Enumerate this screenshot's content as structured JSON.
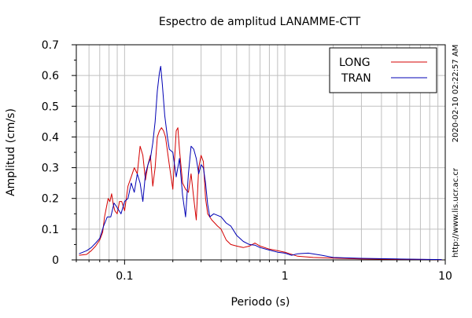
{
  "chart_data": {
    "type": "line",
    "title": "Espectro de amplitud LANAMME-CTT",
    "xlabel": "Periodo (s)",
    "ylabel": "Amplitud (cm/s)",
    "x_scale": "log",
    "xlim": [
      0.05,
      10
    ],
    "ylim": [
      0,
      0.7
    ],
    "grid": true,
    "legend_position": "top-right",
    "x_major_ticks": [
      {
        "value": 0.1,
        "label": "0.1"
      },
      {
        "value": 1,
        "label": "1"
      },
      {
        "value": 10,
        "label": "10"
      }
    ],
    "y_ticks": [
      {
        "value": 0,
        "label": "0"
      },
      {
        "value": 0.1,
        "label": "0.1"
      },
      {
        "value": 0.2,
        "label": "0.2"
      },
      {
        "value": 0.3,
        "label": "0.3"
      },
      {
        "value": 0.4,
        "label": "0.4"
      },
      {
        "value": 0.5,
        "label": "0.5"
      },
      {
        "value": 0.6,
        "label": "0.6"
      },
      {
        "value": 0.7,
        "label": "0.7"
      }
    ],
    "series": [
      {
        "name": "LONG",
        "color": "#d40000",
        "points": [
          [
            0.052,
            0.015
          ],
          [
            0.058,
            0.018
          ],
          [
            0.062,
            0.03
          ],
          [
            0.066,
            0.045
          ],
          [
            0.07,
            0.065
          ],
          [
            0.073,
            0.09
          ],
          [
            0.075,
            0.14
          ],
          [
            0.077,
            0.17
          ],
          [
            0.079,
            0.2
          ],
          [
            0.081,
            0.19
          ],
          [
            0.083,
            0.215
          ],
          [
            0.085,
            0.18
          ],
          [
            0.087,
            0.16
          ],
          [
            0.09,
            0.15
          ],
          [
            0.093,
            0.19
          ],
          [
            0.096,
            0.19
          ],
          [
            0.1,
            0.16
          ],
          [
            0.105,
            0.24
          ],
          [
            0.11,
            0.27
          ],
          [
            0.115,
            0.3
          ],
          [
            0.12,
            0.28
          ],
          [
            0.125,
            0.37
          ],
          [
            0.13,
            0.34
          ],
          [
            0.135,
            0.26
          ],
          [
            0.14,
            0.31
          ],
          [
            0.145,
            0.34
          ],
          [
            0.15,
            0.24
          ],
          [
            0.155,
            0.3
          ],
          [
            0.16,
            0.4
          ],
          [
            0.165,
            0.42
          ],
          [
            0.17,
            0.43
          ],
          [
            0.175,
            0.42
          ],
          [
            0.18,
            0.4
          ],
          [
            0.19,
            0.31
          ],
          [
            0.2,
            0.23
          ],
          [
            0.21,
            0.42
          ],
          [
            0.215,
            0.43
          ],
          [
            0.22,
            0.36
          ],
          [
            0.23,
            0.25
          ],
          [
            0.24,
            0.23
          ],
          [
            0.25,
            0.22
          ],
          [
            0.26,
            0.28
          ],
          [
            0.27,
            0.2
          ],
          [
            0.28,
            0.13
          ],
          [
            0.29,
            0.3
          ],
          [
            0.3,
            0.34
          ],
          [
            0.31,
            0.32
          ],
          [
            0.32,
            0.2
          ],
          [
            0.33,
            0.15
          ],
          [
            0.35,
            0.13
          ],
          [
            0.38,
            0.11
          ],
          [
            0.4,
            0.1
          ],
          [
            0.43,
            0.065
          ],
          [
            0.46,
            0.05
          ],
          [
            0.5,
            0.045
          ],
          [
            0.55,
            0.04
          ],
          [
            0.6,
            0.045
          ],
          [
            0.65,
            0.055
          ],
          [
            0.7,
            0.045
          ],
          [
            0.8,
            0.035
          ],
          [
            0.9,
            0.03
          ],
          [
            1.0,
            0.025
          ],
          [
            1.2,
            0.012
          ],
          [
            1.5,
            0.008
          ],
          [
            2.0,
            0.006
          ],
          [
            3.0,
            0.003
          ],
          [
            5.0,
            0.002
          ],
          [
            9.5,
            0.001
          ]
        ]
      },
      {
        "name": "TRAN",
        "color": "#0000b4",
        "points": [
          [
            0.052,
            0.02
          ],
          [
            0.058,
            0.03
          ],
          [
            0.062,
            0.04
          ],
          [
            0.066,
            0.055
          ],
          [
            0.07,
            0.07
          ],
          [
            0.074,
            0.11
          ],
          [
            0.078,
            0.14
          ],
          [
            0.082,
            0.14
          ],
          [
            0.086,
            0.185
          ],
          [
            0.09,
            0.17
          ],
          [
            0.095,
            0.15
          ],
          [
            0.1,
            0.19
          ],
          [
            0.105,
            0.2
          ],
          [
            0.11,
            0.25
          ],
          [
            0.115,
            0.22
          ],
          [
            0.12,
            0.28
          ],
          [
            0.125,
            0.25
          ],
          [
            0.13,
            0.19
          ],
          [
            0.135,
            0.28
          ],
          [
            0.14,
            0.31
          ],
          [
            0.145,
            0.33
          ],
          [
            0.15,
            0.38
          ],
          [
            0.155,
            0.45
          ],
          [
            0.16,
            0.55
          ],
          [
            0.165,
            0.61
          ],
          [
            0.168,
            0.63
          ],
          [
            0.172,
            0.57
          ],
          [
            0.178,
            0.47
          ],
          [
            0.185,
            0.4
          ],
          [
            0.19,
            0.36
          ],
          [
            0.2,
            0.35
          ],
          [
            0.21,
            0.27
          ],
          [
            0.22,
            0.33
          ],
          [
            0.23,
            0.21
          ],
          [
            0.24,
            0.14
          ],
          [
            0.25,
            0.28
          ],
          [
            0.26,
            0.37
          ],
          [
            0.27,
            0.36
          ],
          [
            0.28,
            0.33
          ],
          [
            0.29,
            0.28
          ],
          [
            0.3,
            0.31
          ],
          [
            0.31,
            0.3
          ],
          [
            0.32,
            0.25
          ],
          [
            0.33,
            0.18
          ],
          [
            0.34,
            0.14
          ],
          [
            0.36,
            0.15
          ],
          [
            0.4,
            0.14
          ],
          [
            0.43,
            0.12
          ],
          [
            0.46,
            0.11
          ],
          [
            0.5,
            0.08
          ],
          [
            0.55,
            0.06
          ],
          [
            0.6,
            0.05
          ],
          [
            0.65,
            0.048
          ],
          [
            0.7,
            0.04
          ],
          [
            0.8,
            0.032
          ],
          [
            0.9,
            0.025
          ],
          [
            1.0,
            0.022
          ],
          [
            1.1,
            0.015
          ],
          [
            1.2,
            0.02
          ],
          [
            1.4,
            0.022
          ],
          [
            1.7,
            0.015
          ],
          [
            2.0,
            0.008
          ],
          [
            3.0,
            0.005
          ],
          [
            5.0,
            0.003
          ],
          [
            9.5,
            0.001
          ]
        ]
      }
    ]
  },
  "side_labels": {
    "timestamp": "2020-02-10 02:22:57 AM",
    "url": "http://www.lis.ucr.ac.cr"
  }
}
